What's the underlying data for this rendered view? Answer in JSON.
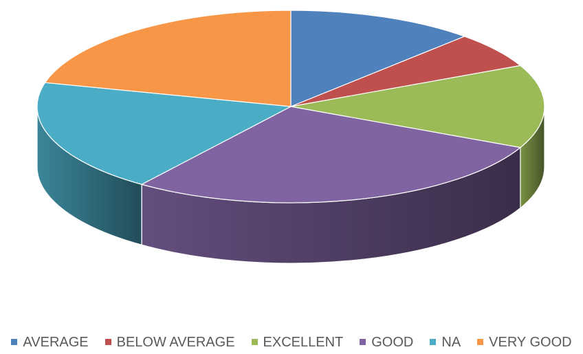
{
  "chart_data": {
    "type": "pie",
    "categories": [
      "AVERAGE",
      "BELOW AVERAGE",
      "EXCELLENT",
      "GOOD",
      "NA",
      "VERY GOOD"
    ],
    "values": [
      12,
      6,
      14,
      28,
      19,
      21
    ],
    "colors": [
      "#4F81BD",
      "#C0504D",
      "#9BBB59",
      "#8064A2",
      "#4BACC6",
      "#F79646"
    ],
    "legend_position": "bottom",
    "style": "3d"
  }
}
